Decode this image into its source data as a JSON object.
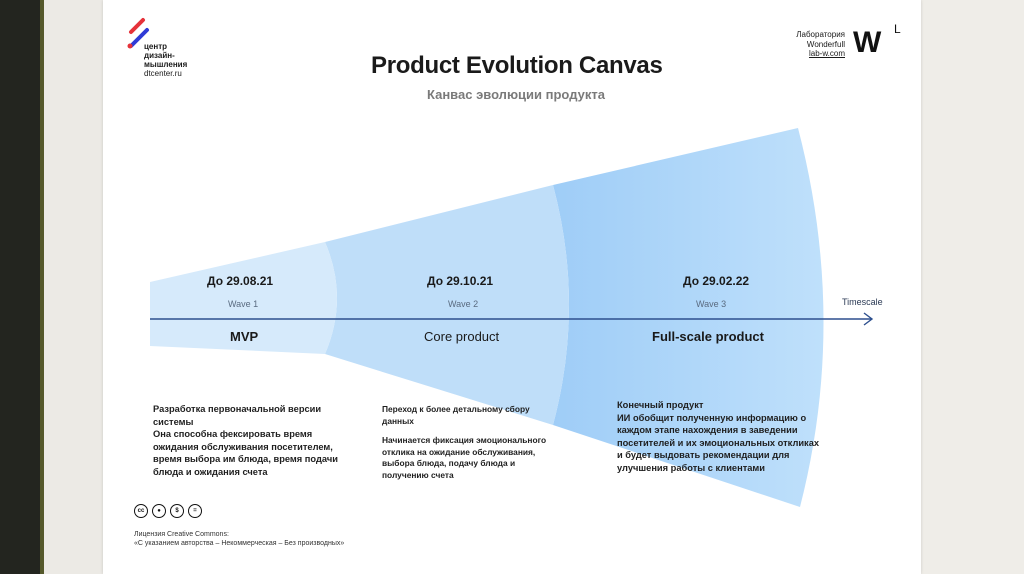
{
  "logo": {
    "lines": [
      "центр",
      "дизайн-",
      "мышления"
    ],
    "site": "dtcenter.ru",
    "colors": {
      "red": "#e5323a",
      "blue": "#2f3bd6"
    }
  },
  "lab": {
    "line1": "Лаборатория",
    "line2": "Wonderfull",
    "line3": "lab-w.com",
    "mark_w": "W",
    "mark_l": "L"
  },
  "title": "Product Evolution Canvas",
  "subtitle": "Канвас эволюции продукта",
  "timescale_label": "Timescale",
  "waves": [
    {
      "date": "До 29.08.21",
      "wave": "Wave 1",
      "stage": "MVP",
      "color": "#d5e9fb"
    },
    {
      "date": "До 29.10.21",
      "wave": "Wave 2",
      "stage": "Core product",
      "color": "#bcdcf9"
    },
    {
      "date": "До 29.02.22",
      "wave": "Wave 3",
      "stage": "Full-scale product",
      "color": "#a6d0f8"
    }
  ],
  "descriptions": {
    "wave1": [
      "Разработка первоначальной версии\nсистемы\nОна способна фексировать время\nожидания обслуживания посетителем,\nвремя выбора им блюда, время подачи\nблюда и ожидания счета"
    ],
    "wave2": [
      "Переход к более детальному сбору\nданных",
      "Начинается фиксация эмоционального\nотклика на ожидание обслуживания,\nвыбора блюда, подачу блюда и\nполучению счета"
    ],
    "wave3": [
      "Конечный продукт\nИИ обобщит полученную информацию о\nкаждом этапе нахождения в заведении\nпосетителей и их эмоциональных откликах\nи будет выдовать рекомендации для\nулучшения работы с клиентами"
    ]
  },
  "license": {
    "icons": [
      "cc",
      "by",
      "nc",
      "nd"
    ],
    "line1": "Лицензия Creative Commons:",
    "line2": "«С указанием авторства – Некоммерческая – Без производных»"
  },
  "colors": {
    "arrow": "#2d4f8e",
    "accent": "#3e8ee0"
  }
}
